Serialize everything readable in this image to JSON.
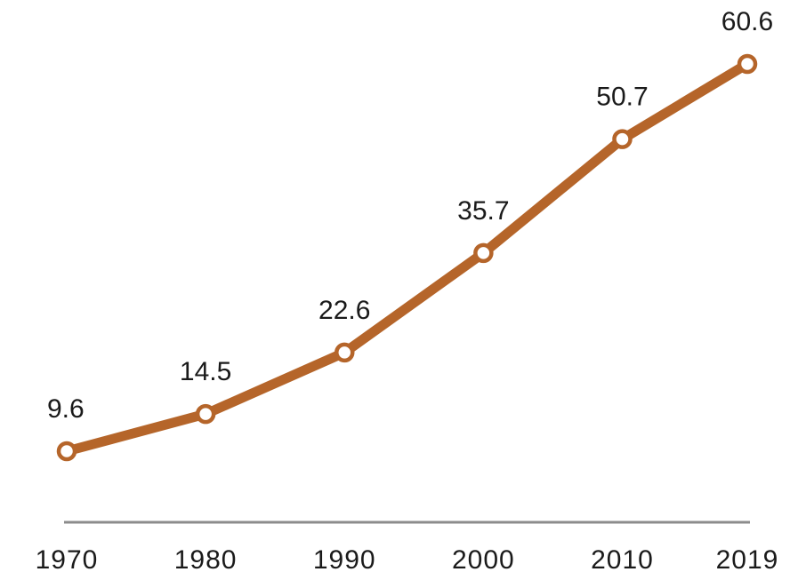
{
  "chart_data": {
    "type": "line",
    "title": "",
    "xlabel": "",
    "ylabel": "",
    "x": [
      "1970",
      "1980",
      "1990",
      "2000",
      "2010",
      "2019"
    ],
    "series": [
      {
        "values": [
          9.6,
          14.5,
          22.6,
          35.7,
          50.7,
          60.6
        ],
        "labels": [
          "9.6",
          "14.5",
          "22.6",
          "35.7",
          "50.7",
          "60.6"
        ],
        "color": "#B5652A"
      }
    ],
    "xlim": [
      1970,
      2019
    ],
    "ylim": [
      0,
      65
    ],
    "grid": false,
    "legend": "none",
    "axis_color": "#8c8c8c",
    "marker_fill": "#ffffff"
  }
}
